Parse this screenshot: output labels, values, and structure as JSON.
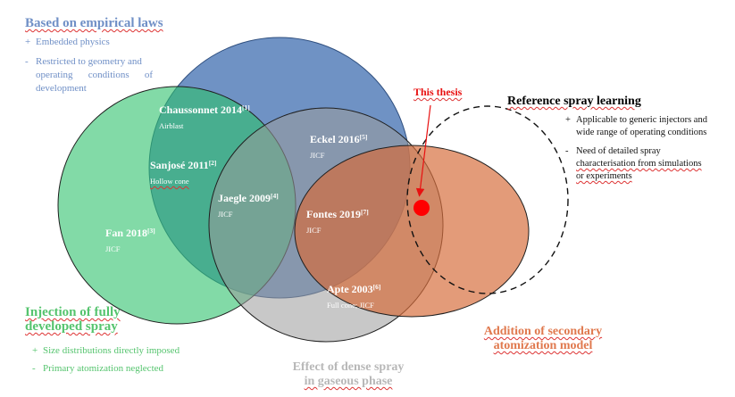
{
  "sets": {
    "empirical": {
      "title": "Based on empirical laws",
      "pro_marker": "+",
      "pro": "Embedded physics",
      "con_marker": "-",
      "con_lines": [
        "Restricted to geometry and",
        "operating conditions of",
        "development"
      ],
      "color": "#6a8fc4"
    },
    "injection": {
      "title_lines": [
        "Injection of fully",
        "developed spray"
      ],
      "pro_marker": "+",
      "pro": "Size distributions directly imposed",
      "con_marker": "-",
      "con": "Primary atomization neglected",
      "color": "#5fd07e"
    },
    "dense": {
      "title_lines": [
        "Effect of dense spray",
        "in gaseous phase"
      ],
      "color": "#9a9a9a"
    },
    "secondary": {
      "title_lines": [
        "Addition of secondary",
        "atomization model"
      ],
      "color": "#e08858"
    },
    "reference": {
      "title": "Reference spray learning",
      "pro_marker": "+",
      "pro_lines": [
        "Applicable to generic injectors and",
        "wide range of operating conditions"
      ],
      "con_marker": "-",
      "con_lines": [
        "Need of detailed spray",
        "characterisation from simulations",
        "or experiments"
      ]
    }
  },
  "works": [
    {
      "name": "Chaussonnet 2014",
      "ref": "[1]",
      "sub": "Airblast"
    },
    {
      "name": "Sanjosé 2011",
      "ref": "[2]",
      "sub": "Hollow cone"
    },
    {
      "name": "Fan 2018",
      "ref": "[3]",
      "sub": "JICF"
    },
    {
      "name": "Jaegle 2009",
      "ref": "[4]",
      "sub": "JICF"
    },
    {
      "name": "Eckel 2016",
      "ref": "[5]",
      "sub": "JICF"
    },
    {
      "name": "Apte 2003",
      "ref": "[6]",
      "sub": "Full cone; JICF"
    },
    {
      "name": "Fontes 2019",
      "ref": "[7]",
      "sub": "JICF"
    }
  ],
  "thesis": {
    "label": "This thesis",
    "color": "#ff0000"
  }
}
